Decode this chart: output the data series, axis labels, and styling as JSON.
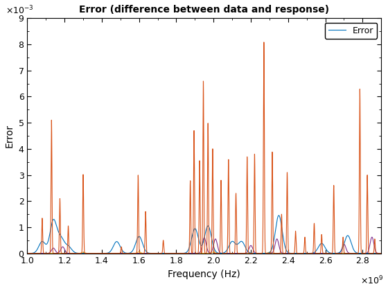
{
  "title": "Error (difference between data and response)",
  "xlabel": "Frequency (Hz)",
  "ylabel": "Error",
  "xlim": [
    1000000000.0,
    2900000000.0
  ],
  "ylim": [
    0,
    0.009
  ],
  "legend_label": "Error",
  "line_colors": [
    "#d95319",
    "#0072bd",
    "#7e2f8e",
    "#edb120"
  ],
  "num_points": 5000,
  "x_start": 1000000000.0,
  "x_end": 2900000000.0,
  "xticks": [
    1.0,
    1.2,
    1.4,
    1.6,
    1.8,
    2.0,
    2.2,
    2.4,
    2.6,
    2.8
  ],
  "yticks": [
    0,
    1,
    2,
    3,
    4,
    5,
    6,
    7,
    8,
    9
  ]
}
